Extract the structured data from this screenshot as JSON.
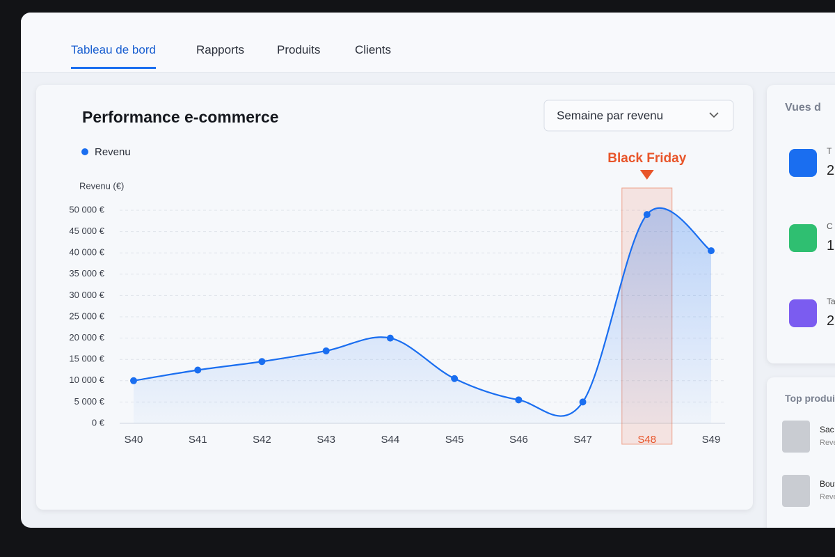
{
  "nav": {
    "tabs": [
      "Tableau de bord",
      "Rapports",
      "Produits",
      "Clients"
    ],
    "active": 0
  },
  "chart_data": {
    "type": "line",
    "title": "Performance e-commerce",
    "dropdown": "Semaine par revenu",
    "ylabel": "Revenu (€)",
    "categories": [
      "S40",
      "S41",
      "S42",
      "S43",
      "S44",
      "S45",
      "S46",
      "S47",
      "S48",
      "S49"
    ],
    "series": [
      {
        "name": "Revenu",
        "color": "#1a6ef0",
        "values": [
          10000,
          12500,
          14500,
          17000,
          20000,
          10500,
          5500,
          5000,
          49000,
          40500
        ]
      }
    ],
    "ylim": [
      0,
      50000
    ],
    "yticks": [
      {
        "value": 0,
        "label": "0 €"
      },
      {
        "value": 5000,
        "label": "5 000 €"
      },
      {
        "value": 10000,
        "label": "10 000 €"
      },
      {
        "value": 15000,
        "label": "15 000 €"
      },
      {
        "value": 20000,
        "label": "20 000 €"
      },
      {
        "value": 25000,
        "label": "25 000 €"
      },
      {
        "value": 30000,
        "label": "30 000 €"
      },
      {
        "value": 35000,
        "label": "35 000 €"
      },
      {
        "value": 40000,
        "label": "40 000 €"
      },
      {
        "value": 45000,
        "label": "45 000 €"
      },
      {
        "value": 50000,
        "label": "50 000 €"
      }
    ],
    "grid": true,
    "legend": "top-left",
    "annotation": {
      "text": "Black Friday",
      "x": 8,
      "color": "#e8552a"
    }
  },
  "side": {
    "title": "Vues d",
    "cards": [
      {
        "label": "T",
        "value": "2",
        "color": "#1a6ef0"
      },
      {
        "label": "C",
        "value": "1",
        "color": "#2fbf71"
      },
      {
        "label": "Ta",
        "value": "2",
        "color": "#7b5cf0"
      }
    ],
    "top_title": "Top produi",
    "products": [
      {
        "name": "Sac",
        "sub": "Reve"
      },
      {
        "name": "Bout",
        "sub": "Reve"
      }
    ]
  }
}
